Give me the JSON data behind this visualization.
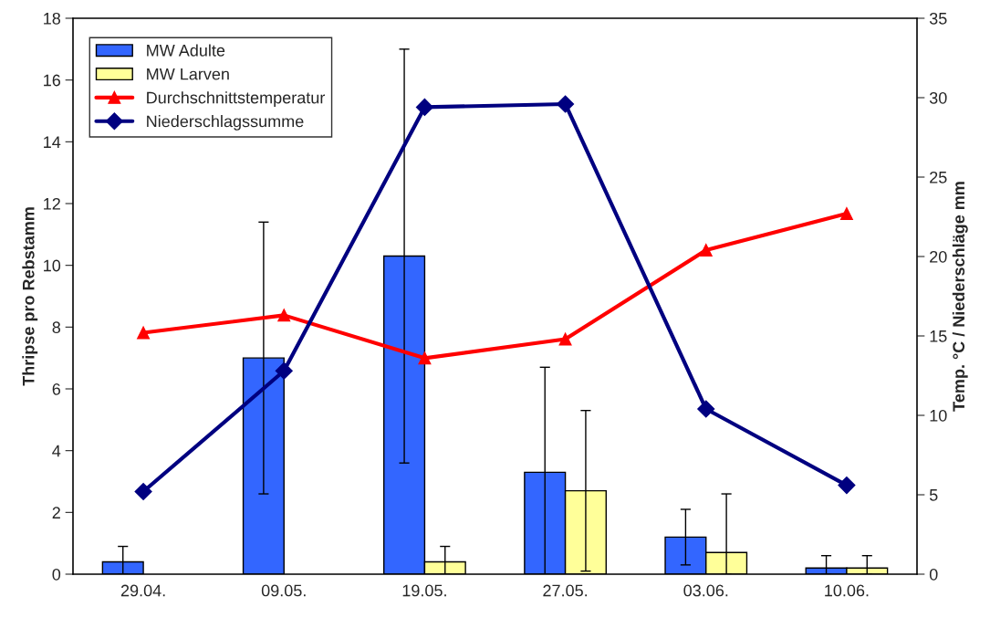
{
  "chart_data": {
    "type": "bar",
    "categories": [
      "29.04.",
      "09.05.",
      "19.05.",
      "27.05.",
      "03.06.",
      "10.06."
    ],
    "ylabel": "Thripse pro Rebstamm",
    "y2label": "Temp. °C / Niederschläge mm",
    "ylim": [
      0,
      18
    ],
    "yticks": [
      0,
      2,
      4,
      6,
      8,
      10,
      12,
      14,
      16,
      18
    ],
    "y2lim": [
      0,
      35
    ],
    "y2ticks": [
      0,
      5,
      10,
      15,
      20,
      25,
      30,
      35
    ],
    "legend": "top left",
    "grid": false,
    "series": [
      {
        "name": "MW Adulte",
        "color": "#3366ff",
        "values": [
          0.4,
          7.0,
          10.3,
          3.3,
          1.2,
          0.2
        ],
        "errors": [
          [
            0,
            0.9
          ],
          [
            2.6,
            11.4
          ],
          [
            3.6,
            17.0
          ],
          [
            0,
            6.7
          ],
          [
            0.3,
            2.1
          ],
          [
            0,
            0.6
          ]
        ]
      },
      {
        "name": "MW Larven",
        "color": "#ffff99",
        "values": [
          null,
          null,
          0.4,
          2.7,
          0.7,
          0.2
        ],
        "errors": [
          null,
          null,
          [
            0,
            0.9
          ],
          [
            0.1,
            5.3
          ],
          [
            0,
            2.6
          ],
          [
            0,
            0.6
          ]
        ]
      },
      {
        "name": "Durchschnittstemperatur",
        "type": "line",
        "axis": "y2",
        "color": "#ff0000",
        "marker": "triangle",
        "values": [
          15.2,
          16.3,
          13.6,
          14.8,
          20.4,
          22.7
        ]
      },
      {
        "name": "Niederschlagssumme",
        "type": "line",
        "axis": "y2",
        "color": "#000080",
        "marker": "diamond",
        "values": [
          5.2,
          12.8,
          29.4,
          29.6,
          10.4,
          5.6
        ]
      }
    ]
  }
}
